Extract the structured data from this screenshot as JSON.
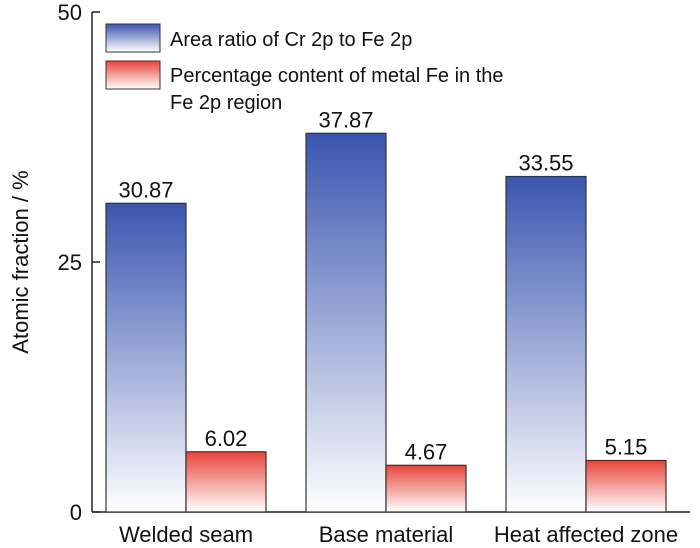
{
  "chart_data": {
    "type": "bar",
    "categories": [
      "Welded seam",
      "Base material",
      "Heat affected zone"
    ],
    "series": [
      {
        "name": "Area ratio of Cr 2p to Fe 2p",
        "values": [
          30.87,
          37.87,
          33.55
        ],
        "labels": [
          "30.87",
          "37.87",
          "33.55"
        ],
        "color": "#3a55b0"
      },
      {
        "name": "Percentage content of metal Fe in the Fe 2p region",
        "name_lines": [
          "Percentage content of metal Fe in the",
          "Fe 2p region"
        ],
        "values": [
          6.02,
          4.67,
          5.15
        ],
        "labels": [
          "6.02",
          "4.67",
          "5.15"
        ],
        "color": "#e8453a"
      }
    ],
    "xlabel": "",
    "ylabel": "Atomic fraction / %",
    "ylim": [
      0,
      50
    ],
    "yticks": [
      "0",
      "25",
      "50"
    ],
    "grid": false,
    "legend_position": "top-left"
  }
}
